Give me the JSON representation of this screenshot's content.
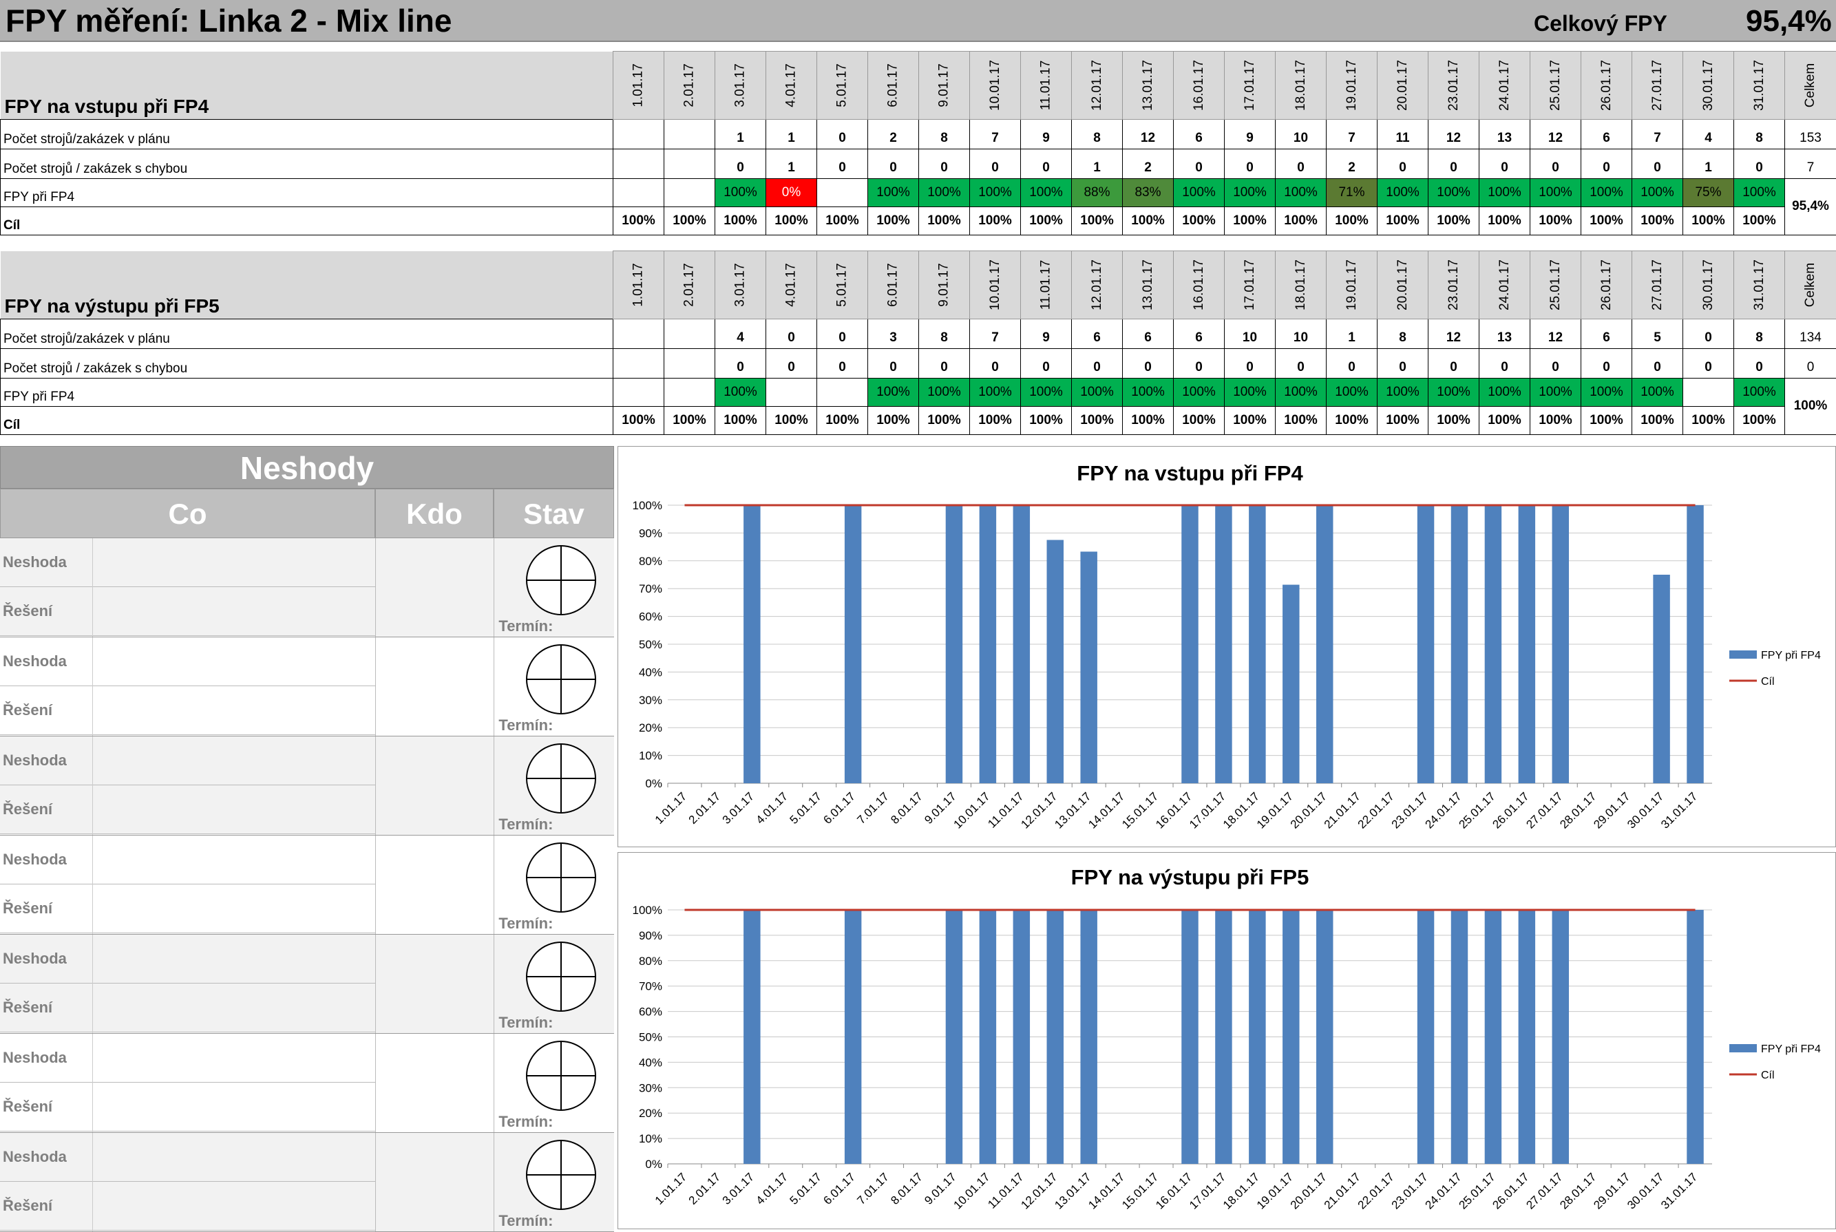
{
  "header": {
    "title": "FPY měření: Linka 2 - Mix line",
    "total_label": "Celkový FPY",
    "total_value": "95,4%"
  },
  "dates": [
    "1.01.17",
    "2.01.17",
    "3.01.17",
    "4.01.17",
    "5.01.17",
    "6.01.17",
    "9.01.17",
    "10.01.17",
    "11.01.17",
    "12.01.17",
    "13.01.17",
    "16.01.17",
    "17.01.17",
    "18.01.17",
    "19.01.17",
    "20.01.17",
    "23.01.17",
    "24.01.17",
    "25.01.17",
    "26.01.17",
    "27.01.17",
    "30.01.17",
    "31.01.17"
  ],
  "total_header": "Celkem",
  "section1": {
    "title": "FPY na vstupu při FP4",
    "rows": [
      {
        "label": "Počet strojů/zakázek v plánu",
        "values": [
          "",
          "",
          "1",
          "1",
          "0",
          "2",
          "8",
          "7",
          "9",
          "8",
          "12",
          "6",
          "9",
          "10",
          "7",
          "11",
          "12",
          "13",
          "12",
          "6",
          "7",
          "4",
          "8"
        ],
        "total": "153"
      },
      {
        "label": "Počet strojů / zakázek s chybou",
        "values": [
          "",
          "",
          "0",
          "1",
          "0",
          "0",
          "0",
          "0",
          "0",
          "1",
          "2",
          "0",
          "0",
          "0",
          "2",
          "0",
          "0",
          "0",
          "0",
          "0",
          "0",
          "1",
          "0"
        ],
        "total": "7"
      }
    ],
    "fpy_label": "FPY při FP4",
    "fpy_values": [
      "",
      "",
      "100%",
      "0%",
      "",
      "100%",
      "100%",
      "100%",
      "100%",
      "88%",
      "83%",
      "100%",
      "100%",
      "100%",
      "71%",
      "100%",
      "100%",
      "100%",
      "100%",
      "100%",
      "100%",
      "75%",
      "100%"
    ],
    "fpy_total": "95,4%",
    "goal_label": "Cíl",
    "goal_values": [
      "100%",
      "100%",
      "100%",
      "100%",
      "100%",
      "100%",
      "100%",
      "100%",
      "100%",
      "100%",
      "100%",
      "100%",
      "100%",
      "100%",
      "100%",
      "100%",
      "100%",
      "100%",
      "100%",
      "100%",
      "100%",
      "100%",
      "100%"
    ]
  },
  "section2": {
    "title": "FPY na výstupu při FP5",
    "rows": [
      {
        "label": "Počet strojů/zakázek v plánu",
        "values": [
          "",
          "",
          "4",
          "0",
          "0",
          "3",
          "8",
          "7",
          "9",
          "6",
          "6",
          "6",
          "10",
          "10",
          "1",
          "8",
          "12",
          "13",
          "12",
          "6",
          "5",
          "0",
          "8"
        ],
        "total": "134"
      },
      {
        "label": "Počet strojů / zakázek s chybou",
        "values": [
          "",
          "",
          "0",
          "0",
          "0",
          "0",
          "0",
          "0",
          "0",
          "0",
          "0",
          "0",
          "0",
          "0",
          "0",
          "0",
          "0",
          "0",
          "0",
          "0",
          "0",
          "0",
          "0"
        ],
        "total": "0"
      }
    ],
    "fpy_label": "FPY při FP4",
    "fpy_values": [
      "",
      "",
      "100%",
      "",
      "",
      "100%",
      "100%",
      "100%",
      "100%",
      "100%",
      "100%",
      "100%",
      "100%",
      "100%",
      "100%",
      "100%",
      "100%",
      "100%",
      "100%",
      "100%",
      "100%",
      "",
      "100%"
    ],
    "fpy_total": "100%",
    "goal_label": "Cíl",
    "goal_values": [
      "100%",
      "100%",
      "100%",
      "100%",
      "100%",
      "100%",
      "100%",
      "100%",
      "100%",
      "100%",
      "100%",
      "100%",
      "100%",
      "100%",
      "100%",
      "100%",
      "100%",
      "100%",
      "100%",
      "100%",
      "100%",
      "100%",
      "100%"
    ]
  },
  "neshody": {
    "title": "Neshody",
    "col_co": "Co",
    "col_kdo": "Kdo",
    "col_stav": "Stav",
    "issue_label": "Neshoda",
    "solution_label": "Řešení",
    "term_label": "Termín:",
    "count": 7
  },
  "chart_data": [
    {
      "type": "bar",
      "title": "FPY na vstupu při FP4",
      "categories": [
        "1.01.17",
        "2.01.17",
        "3.01.17",
        "4.01.17",
        "5.01.17",
        "6.01.17",
        "7.01.17",
        "8.01.17",
        "9.01.17",
        "10.01.17",
        "11.01.17",
        "12.01.17",
        "13.01.17",
        "14.01.17",
        "15.01.17",
        "16.01.17",
        "17.01.17",
        "18.01.17",
        "19.01.17",
        "20.01.17",
        "21.01.17",
        "22.01.17",
        "23.01.17",
        "24.01.17",
        "25.01.17",
        "26.01.17",
        "27.01.17",
        "28.01.17",
        "29.01.17",
        "30.01.17",
        "31.01.17"
      ],
      "series": [
        {
          "name": "FPY při FP4",
          "kind": "bar",
          "color": "#4f81bd",
          "values": [
            null,
            null,
            100,
            0,
            null,
            100,
            null,
            null,
            100,
            100,
            100,
            87.5,
            83.3,
            null,
            null,
            100,
            100,
            100,
            71.4,
            100,
            null,
            null,
            100,
            100,
            100,
            100,
            100,
            null,
            null,
            75,
            100
          ]
        },
        {
          "name": "Cíl",
          "kind": "line",
          "color": "#c0392b",
          "values": [
            100,
            100,
            100,
            100,
            100,
            100,
            100,
            100,
            100,
            100,
            100,
            100,
            100,
            100,
            100,
            100,
            100,
            100,
            100,
            100,
            100,
            100,
            100,
            100,
            100,
            100,
            100,
            100,
            100,
            100,
            100
          ]
        }
      ],
      "yticks": [
        "0%",
        "10%",
        "20%",
        "30%",
        "40%",
        "50%",
        "60%",
        "70%",
        "80%",
        "90%",
        "100%"
      ],
      "ylim": [
        0,
        100
      ],
      "legend": "right"
    },
    {
      "type": "bar",
      "title": "FPY na výstupu při FP5",
      "categories": [
        "1.01.17",
        "2.01.17",
        "3.01.17",
        "4.01.17",
        "5.01.17",
        "6.01.17",
        "7.01.17",
        "8.01.17",
        "9.01.17",
        "10.01.17",
        "11.01.17",
        "12.01.17",
        "13.01.17",
        "14.01.17",
        "15.01.17",
        "16.01.17",
        "17.01.17",
        "18.01.17",
        "19.01.17",
        "20.01.17",
        "21.01.17",
        "22.01.17",
        "23.01.17",
        "24.01.17",
        "25.01.17",
        "26.01.17",
        "27.01.17",
        "28.01.17",
        "29.01.17",
        "30.01.17",
        "31.01.17"
      ],
      "series": [
        {
          "name": "FPY při FP4",
          "kind": "bar",
          "color": "#4f81bd",
          "values": [
            null,
            null,
            100,
            null,
            null,
            100,
            null,
            null,
            100,
            100,
            100,
            100,
            100,
            null,
            null,
            100,
            100,
            100,
            100,
            100,
            null,
            null,
            100,
            100,
            100,
            100,
            100,
            null,
            null,
            null,
            100
          ]
        },
        {
          "name": "Cíl",
          "kind": "line",
          "color": "#c0392b",
          "values": [
            100,
            100,
            100,
            100,
            100,
            100,
            100,
            100,
            100,
            100,
            100,
            100,
            100,
            100,
            100,
            100,
            100,
            100,
            100,
            100,
            100,
            100,
            100,
            100,
            100,
            100,
            100,
            100,
            100,
            100,
            100
          ]
        }
      ],
      "yticks": [
        "0%",
        "10%",
        "20%",
        "30%",
        "40%",
        "50%",
        "60%",
        "70%",
        "80%",
        "90%",
        "100%"
      ],
      "ylim": [
        0,
        100
      ],
      "legend": "right"
    }
  ]
}
